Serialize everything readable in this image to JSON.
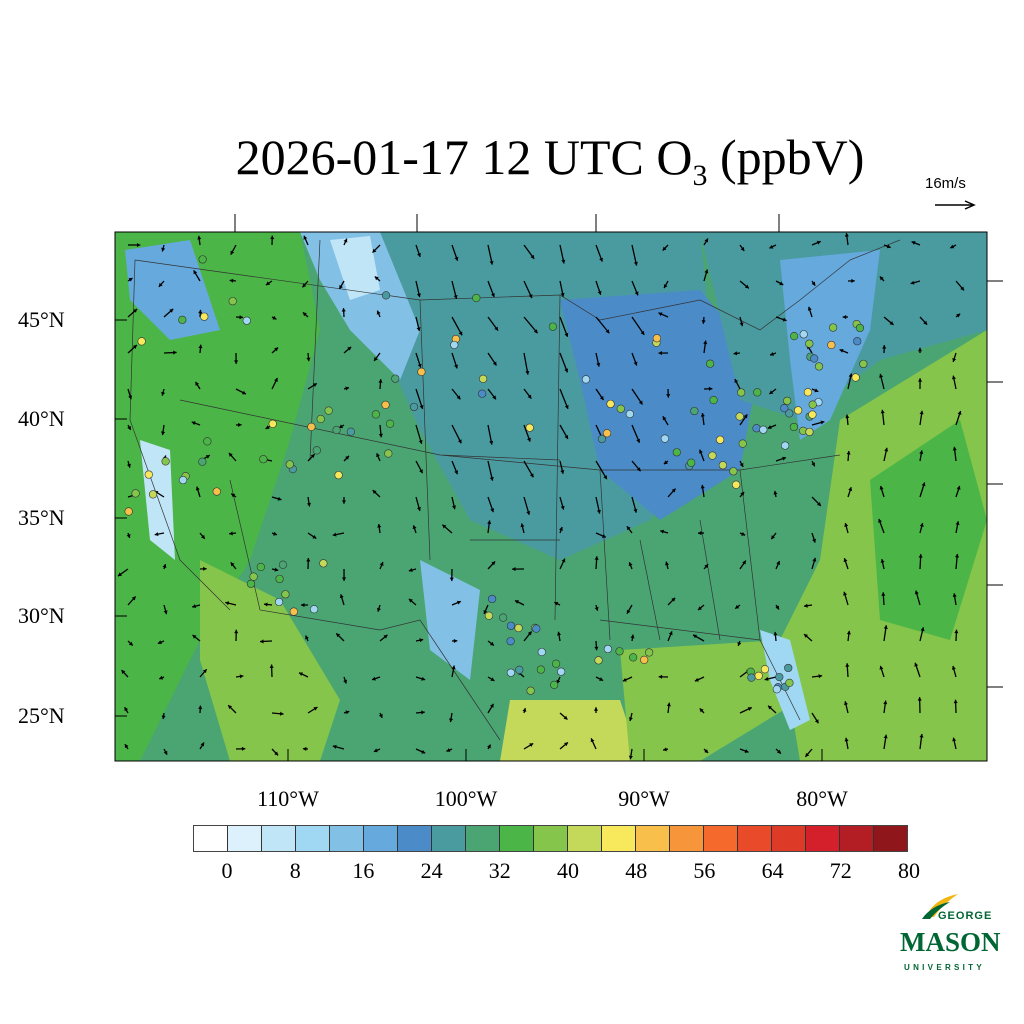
{
  "title": {
    "text": "2026-01-17 12 UTC O",
    "subscript": "3",
    "units": " (ppbV)"
  },
  "wind_reference": {
    "label": "16m/s"
  },
  "lat_labels": [
    "45°N",
    "40°N",
    "35°N",
    "30°N",
    "25°N"
  ],
  "lon_labels": [
    "110°W",
    "100°W",
    "90°W",
    "80°W"
  ],
  "colorbar": {
    "labels": [
      "0",
      "8",
      "16",
      "24",
      "32",
      "40",
      "48",
      "56",
      "64",
      "72",
      "80"
    ],
    "colors": [
      "#ffffff",
      "#dcf1fb",
      "#bfe5f7",
      "#a0d8f3",
      "#83c0e6",
      "#66a9dc",
      "#4a8bc8",
      "#4a9ba0",
      "#4aa573",
      "#4bb547",
      "#86c54b",
      "#c4d85a",
      "#f8e85c",
      "#f8c04a",
      "#f7953a",
      "#f56a2c",
      "#e94a2a",
      "#de3a28",
      "#d4202a",
      "#b21e24",
      "#8f171b"
    ]
  },
  "logo": {
    "line1": "GEORGE",
    "line2": "MASON",
    "line3": "UNIVERSITY",
    "color": "#006633",
    "accent": "#f2b70f"
  }
}
